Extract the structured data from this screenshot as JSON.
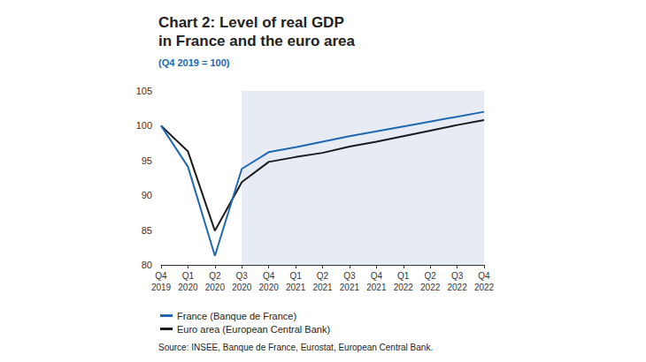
{
  "chart_data": {
    "type": "line",
    "title": "Chart 2: Level of real GDP\nin France and the euro area",
    "subtitle": "(Q4 2019 = 100)",
    "source": "Source: INSEE, Banque de France, Eurostat, European Central Bank.",
    "categories": [
      "Q4 2019",
      "Q1 2020",
      "Q2 2020",
      "Q3 2020",
      "Q4 2020",
      "Q1 2021",
      "Q2 2021",
      "Q3 2021",
      "Q4 2021",
      "Q1 2022",
      "Q2 2022",
      "Q3 2022",
      "Q4 2022"
    ],
    "series": [
      {
        "name": "France (Banque de France)",
        "color": "#2068b0",
        "values": [
          100,
          94.1,
          81.3,
          93.8,
          96.2,
          96.9,
          97.7,
          98.5,
          99.2,
          99.9,
          100.6,
          101.3,
          102.0
        ]
      },
      {
        "name": "Euro area (European Central Bank)",
        "color": "#1a1a1a",
        "values": [
          100,
          96.3,
          84.9,
          91.9,
          94.8,
          95.5,
          96.1,
          97.0,
          97.7,
          98.5,
          99.3,
          100.1,
          100.8
        ]
      }
    ],
    "shaded_from": "Q3 2020",
    "ylim": [
      80,
      105
    ],
    "yticks": [
      80,
      85,
      90,
      95,
      100,
      105
    ],
    "grid": false,
    "legend": "lower-left"
  }
}
